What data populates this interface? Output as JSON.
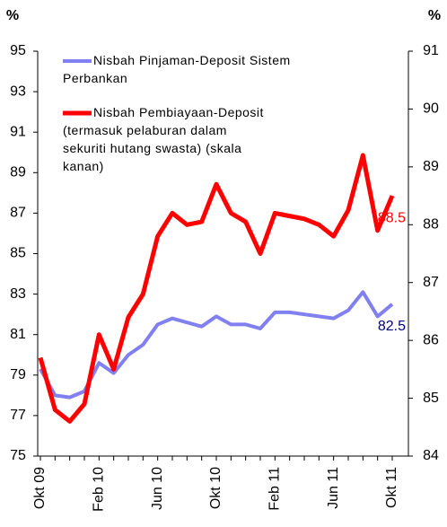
{
  "chart_data": {
    "type": "line",
    "y_unit_label": "%",
    "y2_unit_label": "%",
    "categories": [
      "Okt 09",
      null,
      null,
      null,
      "Feb 10",
      null,
      null,
      null,
      "Jun 10",
      null,
      null,
      null,
      "Okt 10",
      null,
      null,
      null,
      "Feb 11",
      null,
      null,
      null,
      "Jun 11",
      null,
      null,
      null,
      "Okt 11"
    ],
    "series": [
      {
        "name": "Nisbah Pinjaman-Deposit Sistem Perbankan",
        "color": "#8080f0",
        "axis": "y",
        "values": [
          79.3,
          78.0,
          77.9,
          78.2,
          79.6,
          79.1,
          80.0,
          80.5,
          81.5,
          81.8,
          81.6,
          81.4,
          81.9,
          81.5,
          81.5,
          81.3,
          82.1,
          82.1,
          82.0,
          81.9,
          81.8,
          82.2,
          83.1,
          81.9,
          82.5
        ],
        "end_label": "82.5",
        "end_label_color": "#000080"
      },
      {
        "name": "Nisbah Pembiayaan-Deposit (termasuk pelaburan dalam sekuriti hutang swasta) (skala kanan)",
        "color": "#ff0000",
        "axis": "y2",
        "values": [
          85.7,
          84.8,
          84.6,
          84.9,
          86.1,
          85.5,
          86.4,
          86.8,
          87.8,
          88.2,
          88.0,
          88.05,
          88.7,
          88.2,
          88.05,
          87.5,
          88.2,
          88.15,
          88.1,
          88.0,
          87.8,
          88.25,
          89.2,
          87.9,
          88.5
        ],
        "end_label": "88.5",
        "end_label_color": "#ff0000"
      }
    ],
    "ylim": [
      75,
      95
    ],
    "yticks": [
      75,
      77,
      79,
      81,
      83,
      85,
      87,
      89,
      91,
      93,
      95
    ],
    "y2lim": [
      84,
      91
    ],
    "y2ticks": [
      84,
      85,
      86,
      87,
      88,
      89,
      90,
      91
    ]
  }
}
